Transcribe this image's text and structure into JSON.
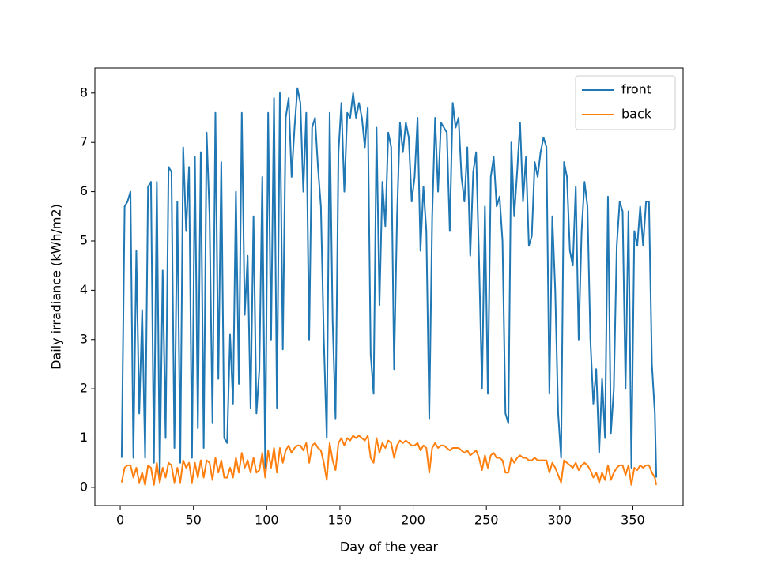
{
  "chart_data": {
    "type": "line",
    "xlabel": "Day of the year",
    "ylabel": "Daily irradiance (kWh/m2)",
    "x": [
      1,
      3,
      5,
      7,
      9,
      11,
      13,
      15,
      17,
      19,
      21,
      23,
      25,
      27,
      29,
      31,
      33,
      35,
      37,
      39,
      41,
      43,
      45,
      47,
      49,
      51,
      53,
      55,
      57,
      59,
      61,
      63,
      65,
      67,
      69,
      71,
      73,
      75,
      77,
      79,
      81,
      83,
      85,
      87,
      89,
      91,
      93,
      95,
      97,
      99,
      101,
      103,
      105,
      107,
      109,
      111,
      113,
      115,
      117,
      119,
      121,
      123,
      125,
      127,
      129,
      131,
      133,
      135,
      137,
      139,
      141,
      143,
      145,
      147,
      149,
      151,
      153,
      155,
      157,
      159,
      161,
      163,
      165,
      167,
      169,
      171,
      173,
      175,
      177,
      179,
      181,
      183,
      185,
      187,
      189,
      191,
      193,
      195,
      197,
      199,
      201,
      203,
      205,
      207,
      209,
      211,
      213,
      215,
      217,
      219,
      221,
      223,
      225,
      227,
      229,
      231,
      233,
      235,
      237,
      239,
      241,
      243,
      245,
      247,
      249,
      251,
      253,
      255,
      257,
      259,
      261,
      263,
      265,
      267,
      269,
      271,
      273,
      275,
      277,
      279,
      281,
      283,
      285,
      287,
      289,
      291,
      293,
      295,
      297,
      299,
      301,
      303,
      305,
      307,
      309,
      311,
      313,
      315,
      317,
      319,
      321,
      323,
      325,
      327,
      329,
      331,
      333,
      335,
      337,
      339,
      341,
      343,
      345,
      347,
      349,
      351,
      353,
      355,
      357,
      359,
      361,
      363,
      365,
      366
    ],
    "series": [
      {
        "name": "front",
        "color": "#1f77b4",
        "values": [
          0.6,
          5.7,
          5.8,
          6.0,
          0.6,
          4.8,
          1.5,
          3.6,
          0.6,
          6.1,
          6.2,
          0.5,
          6.2,
          0.2,
          4.4,
          1.0,
          6.5,
          6.4,
          0.8,
          5.8,
          0.5,
          6.9,
          5.2,
          6.5,
          0.6,
          6.7,
          1.2,
          6.8,
          0.8,
          7.2,
          5.5,
          1.3,
          7.6,
          2.2,
          6.6,
          1.0,
          0.9,
          3.1,
          1.7,
          6.0,
          2.1,
          7.6,
          3.5,
          4.7,
          1.6,
          5.5,
          1.5,
          2.4,
          6.3,
          0.4,
          7.6,
          3.0,
          7.9,
          1.6,
          8.0,
          2.8,
          7.5,
          7.9,
          6.3,
          7.3,
          8.1,
          7.8,
          6.0,
          7.6,
          3.0,
          7.3,
          7.5,
          6.5,
          5.7,
          3.0,
          1.0,
          7.6,
          3.4,
          1.4,
          6.8,
          7.8,
          6.0,
          7.6,
          7.5,
          8.0,
          7.5,
          7.8,
          7.5,
          6.9,
          7.7,
          2.7,
          1.9,
          7.3,
          3.7,
          6.2,
          5.3,
          7.2,
          6.9,
          2.4,
          5.5,
          7.4,
          6.8,
          7.4,
          7.1,
          5.8,
          6.3,
          7.5,
          4.8,
          6.1,
          5.2,
          1.4,
          5.5,
          7.5,
          6.0,
          7.4,
          7.3,
          7.2,
          5.2,
          7.8,
          7.3,
          7.5,
          6.3,
          5.8,
          6.9,
          4.7,
          6.4,
          6.8,
          4.6,
          2.0,
          5.7,
          1.9,
          6.3,
          6.7,
          5.7,
          5.9,
          5.0,
          1.5,
          1.3,
          7.0,
          5.5,
          6.4,
          7.4,
          5.8,
          6.7,
          4.9,
          5.1,
          6.6,
          6.3,
          6.8,
          7.1,
          6.9,
          1.9,
          5.5,
          4.0,
          1.5,
          0.6,
          6.6,
          6.3,
          4.8,
          4.5,
          6.1,
          3.0,
          5.2,
          6.2,
          5.7,
          3.0,
          1.7,
          2.4,
          0.7,
          2.2,
          1.0,
          5.9,
          1.1,
          2.0,
          4.9,
          5.8,
          5.6,
          2.0,
          5.6,
          0.4,
          5.2,
          4.9,
          5.7,
          4.9,
          5.8,
          5.8,
          2.5,
          1.5,
          0.2
        ]
      },
      {
        "name": "back",
        "color": "#ff7f0e",
        "values": [
          0.1,
          0.4,
          0.45,
          0.45,
          0.2,
          0.4,
          0.1,
          0.3,
          0.05,
          0.45,
          0.4,
          0.05,
          0.5,
          0.1,
          0.4,
          0.2,
          0.5,
          0.45,
          0.1,
          0.4,
          0.1,
          0.55,
          0.4,
          0.5,
          0.1,
          0.5,
          0.2,
          0.55,
          0.2,
          0.55,
          0.5,
          0.15,
          0.6,
          0.3,
          0.55,
          0.2,
          0.2,
          0.4,
          0.2,
          0.6,
          0.3,
          0.7,
          0.4,
          0.55,
          0.3,
          0.6,
          0.3,
          0.35,
          0.7,
          0.2,
          0.75,
          0.4,
          0.8,
          0.3,
          0.8,
          0.5,
          0.75,
          0.85,
          0.7,
          0.8,
          0.85,
          0.85,
          0.75,
          0.9,
          0.5,
          0.85,
          0.9,
          0.8,
          0.75,
          0.5,
          0.15,
          0.9,
          0.55,
          0.35,
          0.9,
          1.0,
          0.85,
          1.0,
          0.95,
          1.05,
          1.0,
          1.05,
          1.0,
          0.95,
          1.05,
          0.6,
          0.5,
          1.0,
          0.7,
          0.9,
          0.8,
          0.95,
          0.9,
          0.6,
          0.85,
          0.95,
          0.9,
          0.95,
          0.9,
          0.85,
          0.85,
          0.9,
          0.75,
          0.85,
          0.8,
          0.3,
          0.8,
          0.9,
          0.8,
          0.85,
          0.85,
          0.8,
          0.75,
          0.8,
          0.8,
          0.8,
          0.75,
          0.7,
          0.75,
          0.65,
          0.7,
          0.75,
          0.6,
          0.35,
          0.65,
          0.4,
          0.65,
          0.7,
          0.6,
          0.6,
          0.55,
          0.3,
          0.3,
          0.6,
          0.5,
          0.6,
          0.65,
          0.6,
          0.6,
          0.55,
          0.55,
          0.6,
          0.55,
          0.55,
          0.55,
          0.55,
          0.3,
          0.5,
          0.4,
          0.25,
          0.1,
          0.55,
          0.5,
          0.45,
          0.4,
          0.5,
          0.35,
          0.45,
          0.5,
          0.45,
          0.35,
          0.2,
          0.3,
          0.1,
          0.3,
          0.15,
          0.45,
          0.15,
          0.3,
          0.4,
          0.45,
          0.45,
          0.25,
          0.45,
          0.05,
          0.4,
          0.35,
          0.45,
          0.4,
          0.45,
          0.45,
          0.3,
          0.2,
          0.05
        ]
      }
    ],
    "xlim": [
      -17.3,
      384.3
    ],
    "xticks": [
      0,
      50,
      100,
      150,
      200,
      250,
      300,
      350
    ],
    "ylim": [
      -0.37,
      8.51
    ],
    "yticks": [
      0,
      1,
      2,
      3,
      4,
      5,
      6,
      7,
      8
    ],
    "legend": "upper right"
  }
}
